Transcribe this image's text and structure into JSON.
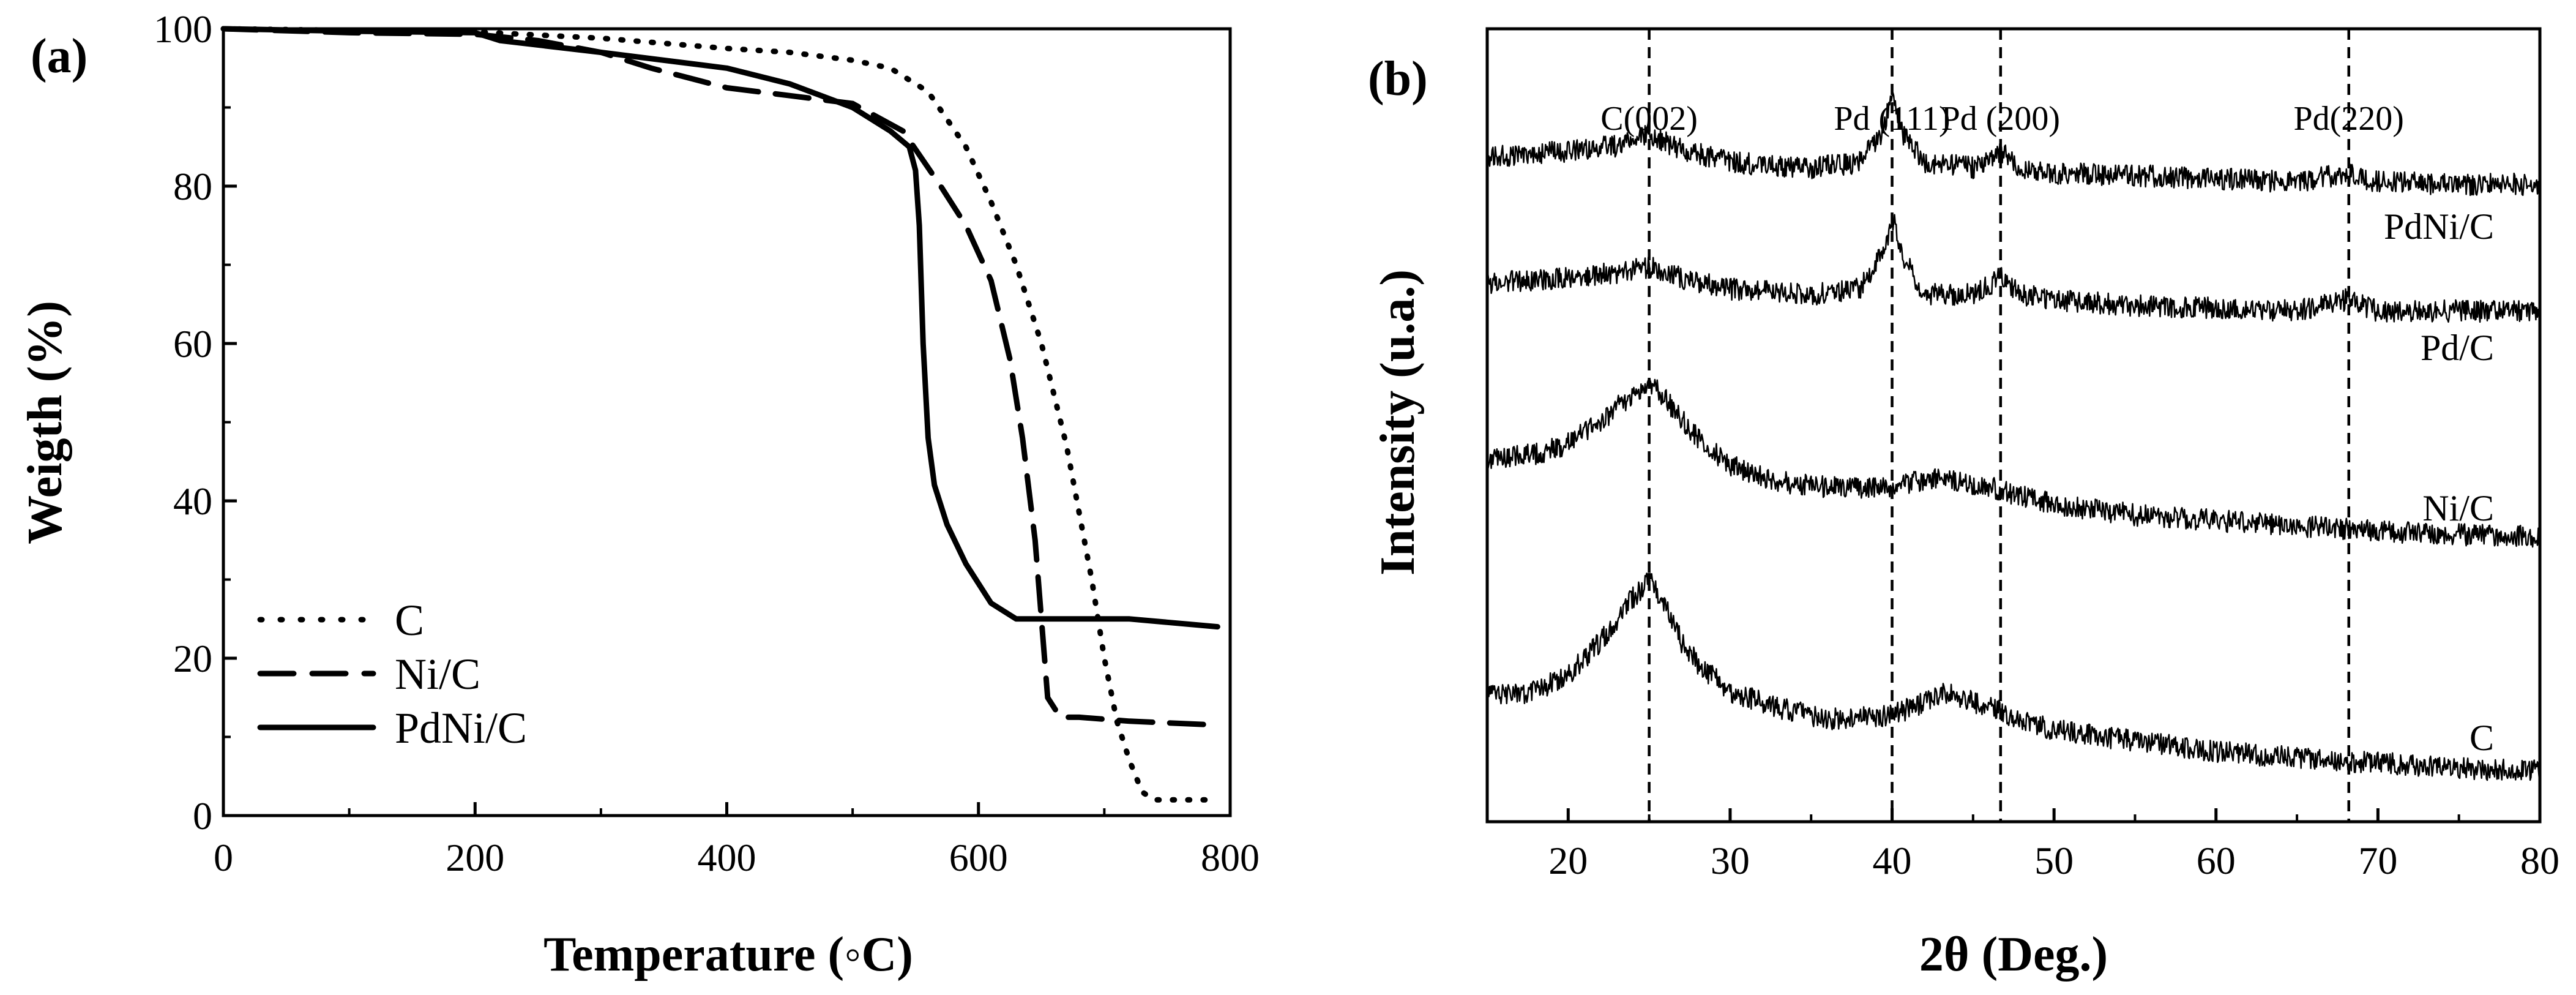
{
  "chart_data": [
    {
      "panel": "(a)",
      "type": "line",
      "xlabel": "Temperature (◦C)",
      "ylabel": "Weigth (%)",
      "xlim": [
        0,
        800
      ],
      "ylim": [
        0,
        100
      ],
      "xticks": [
        0,
        200,
        400,
        600,
        800
      ],
      "yticks": [
        0,
        20,
        40,
        60,
        80,
        100
      ],
      "legend_position": "bottom-left",
      "series": [
        {
          "name": "C",
          "style": "dotted",
          "x": [
            0,
            100,
            200,
            300,
            400,
            450,
            500,
            530,
            560,
            590,
            610,
            630,
            650,
            670,
            690,
            700,
            710,
            720,
            730,
            740,
            760,
            790
          ],
          "y": [
            100,
            99.8,
            99.6,
            98.8,
            97.5,
            97,
            96,
            95,
            92,
            85,
            78,
            70,
            60,
            47,
            30,
            20,
            12,
            7,
            3,
            2,
            2,
            2
          ]
        },
        {
          "name": "Ni/C",
          "style": "dashed",
          "x": [
            0,
            100,
            200,
            250,
            300,
            340,
            400,
            450,
            500,
            540,
            570,
            590,
            610,
            625,
            635,
            645,
            650,
            655,
            665,
            680,
            720,
            790
          ],
          "y": [
            100,
            99.5,
            99.3,
            98.5,
            97,
            95,
            92.5,
            91.5,
            90.5,
            87,
            80,
            75,
            68,
            58,
            48,
            35,
            25,
            15,
            12.5,
            12.5,
            12,
            11.5
          ]
        },
        {
          "name": "PdNi/C",
          "style": "solid",
          "x": [
            0,
            100,
            200,
            220,
            300,
            400,
            450,
            500,
            530,
            545,
            550,
            553,
            556,
            560,
            565,
            575,
            590,
            610,
            630,
            660,
            720,
            790
          ],
          "y": [
            100,
            99.7,
            99.5,
            98.5,
            97,
            95,
            93,
            90,
            87,
            85,
            82,
            75,
            60,
            48,
            42,
            37,
            32,
            27,
            25,
            25,
            25,
            24
          ]
        }
      ]
    },
    {
      "panel": "(b)",
      "type": "line",
      "xlabel": "2θ (Deg.)",
      "ylabel": "Intensity (u.a.)",
      "xlim": [
        15,
        80
      ],
      "xticks": [
        20,
        30,
        40,
        50,
        60,
        70,
        80
      ],
      "reference_lines": [
        {
          "label": "C(002)",
          "x": 25
        },
        {
          "label": "Pd (111)",
          "x": 40
        },
        {
          "label": "Pd (200)",
          "x": 46.7
        },
        {
          "label": "Pd(220)",
          "x": 68.2
        }
      ],
      "series": [
        {
          "name": "PdNi/C",
          "x": [
            15,
            20,
            23,
            25,
            27,
            30,
            35,
            38,
            39.5,
            40,
            40.7,
            42,
            45,
            46.7,
            48,
            50,
            55,
            60,
            65,
            68,
            70,
            75,
            80
          ],
          "y": [
            4.35,
            4.4,
            4.45,
            4.55,
            4.42,
            4.3,
            4.25,
            4.3,
            4.6,
            4.95,
            4.55,
            4.3,
            4.25,
            4.4,
            4.25,
            4.2,
            4.18,
            4.15,
            4.12,
            4.2,
            4.12,
            4.1,
            4.1
          ]
        },
        {
          "name": "Pd/C",
          "x": [
            15,
            20,
            23,
            25,
            27,
            30,
            35,
            38,
            39.5,
            40,
            40.7,
            42,
            45,
            46.7,
            48,
            50,
            55,
            60,
            65,
            68,
            70,
            75,
            80
          ],
          "y": [
            3.2,
            3.25,
            3.3,
            3.35,
            3.25,
            3.15,
            3.1,
            3.15,
            3.5,
            3.8,
            3.45,
            3.1,
            3.1,
            3.25,
            3.1,
            3.05,
            3.0,
            2.98,
            2.95,
            3.05,
            2.95,
            2.95,
            2.95
          ]
        },
        {
          "name": "Ni/C",
          "x": [
            15,
            18,
            20,
            22,
            24,
            25,
            26,
            28,
            30,
            33,
            36,
            40,
            43,
            46,
            50,
            55,
            60,
            65,
            70,
            75,
            80
          ],
          "y": [
            1.6,
            1.65,
            1.75,
            1.95,
            2.2,
            2.3,
            2.15,
            1.8,
            1.55,
            1.4,
            1.35,
            1.35,
            1.45,
            1.35,
            1.2,
            1.1,
            1.05,
            1.0,
            0.95,
            0.92,
            0.9
          ]
        },
        {
          "name": "C",
          "x": [
            15,
            18,
            20,
            22,
            24,
            25,
            26,
            27,
            28,
            30,
            33,
            36,
            40,
            42,
            43.5,
            45,
            48,
            50,
            55,
            60,
            65,
            70,
            75,
            80
          ],
          "y": [
            -0.55,
            -0.5,
            -0.35,
            -0.05,
            0.35,
            0.5,
            0.3,
            -0.05,
            -0.25,
            -0.5,
            -0.65,
            -0.75,
            -0.72,
            -0.6,
            -0.5,
            -0.6,
            -0.75,
            -0.85,
            -0.95,
            -1.05,
            -1.1,
            -1.15,
            -1.2,
            -1.22
          ]
        }
      ]
    }
  ]
}
